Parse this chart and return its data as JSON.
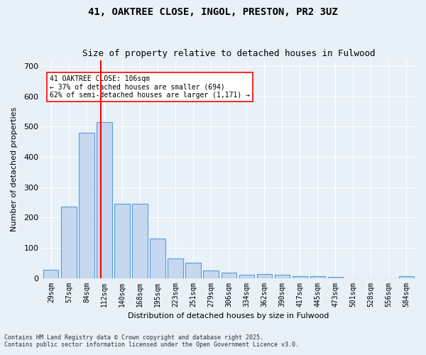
{
  "title1": "41, OAKTREE CLOSE, INGOL, PRESTON, PR2 3UZ",
  "title2": "Size of property relative to detached houses in Fulwood",
  "xlabel": "Distribution of detached houses by size in Fulwood",
  "ylabel": "Number of detached properties",
  "categories": [
    "29sqm",
    "57sqm",
    "84sqm",
    "112sqm",
    "140sqm",
    "168sqm",
    "195sqm",
    "223sqm",
    "251sqm",
    "279sqm",
    "306sqm",
    "334sqm",
    "362sqm",
    "390sqm",
    "417sqm",
    "445sqm",
    "473sqm",
    "501sqm",
    "528sqm",
    "556sqm",
    "584sqm"
  ],
  "values": [
    28,
    235,
    480,
    515,
    245,
    245,
    130,
    65,
    50,
    25,
    18,
    10,
    12,
    10,
    6,
    6,
    4,
    0,
    0,
    0,
    5
  ],
  "bar_color": "#c5d8f0",
  "bar_edge_color": "#5b9bd5",
  "vline_x": 2.5,
  "vline_color": "red",
  "annotation_text": "41 OAKTREE CLOSE: 106sqm\n← 37% of detached houses are smaller (694)\n62% of semi-detached houses are larger (1,171) →",
  "annotation_box_color": "white",
  "annotation_box_edge": "red",
  "ylim": [
    0,
    720
  ],
  "yticks": [
    0,
    100,
    200,
    300,
    400,
    500,
    600,
    700
  ],
  "background_color": "#e8f0f8",
  "grid_color": "white",
  "footer1": "Contains HM Land Registry data © Crown copyright and database right 2025.",
  "footer2": "Contains public sector information licensed under the Open Government Licence v3.0."
}
